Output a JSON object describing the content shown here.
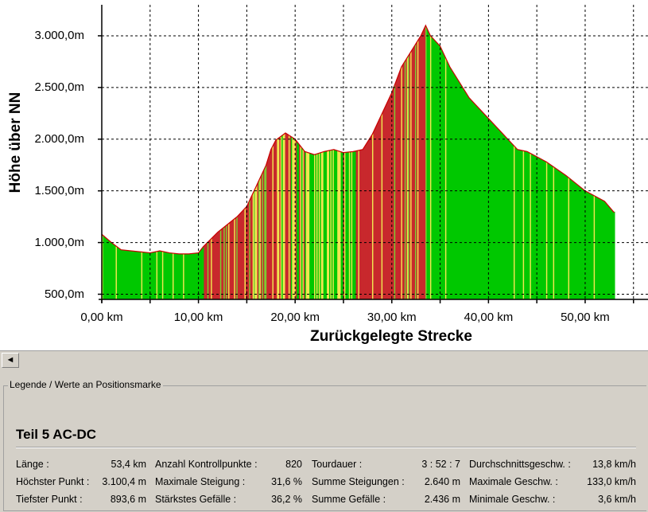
{
  "chart_data": {
    "type": "area",
    "ylabel": "Höhe über NN",
    "xlabel": "Zurückgelegte Strecke",
    "x_ticks": [
      "0,00 km",
      "10,00 km",
      "20,00 km",
      "30,00 km",
      "40,00 km",
      "50,00 km"
    ],
    "y_ticks": [
      "500,0m",
      "1.000,0m",
      "1.500,0m",
      "2.000,0m",
      "2.500,0m",
      "3.000,0m"
    ],
    "xlim": [
      0,
      56.5
    ],
    "ylim": [
      450,
      3300
    ],
    "grid": true,
    "series": [
      {
        "x": [
          0,
          1,
          2,
          3,
          4,
          5,
          6,
          7,
          8,
          9,
          10,
          10.5,
          12,
          14,
          15,
          16,
          17,
          17.5,
          18,
          19,
          20,
          21,
          22,
          23,
          24,
          25,
          26,
          27,
          28,
          30,
          31,
          32,
          33,
          33.5,
          34,
          35,
          36,
          38,
          40,
          42,
          43,
          44,
          46,
          48,
          50,
          52,
          53
        ],
        "y": [
          1080,
          1000,
          930,
          920,
          910,
          900,
          920,
          900,
          890,
          890,
          900,
          960,
          1100,
          1250,
          1350,
          1550,
          1750,
          1900,
          1990,
          2060,
          2000,
          1880,
          1850,
          1880,
          1900,
          1870,
          1880,
          1900,
          2050,
          2450,
          2700,
          2850,
          3000,
          3100,
          3000,
          2900,
          2700,
          2400,
          2200,
          2000,
          1900,
          1880,
          1780,
          1650,
          1500,
          1400,
          1290
        ]
      }
    ],
    "color_segments": [
      {
        "from": 0,
        "to": 10.5,
        "grade": "flat"
      },
      {
        "from": 10.5,
        "to": 18,
        "grade": "climb"
      },
      {
        "from": 18,
        "to": 20.5,
        "grade": "mixed"
      },
      {
        "from": 20.5,
        "to": 26.5,
        "grade": "rolling"
      },
      {
        "from": 26.5,
        "to": 33.6,
        "grade": "climb"
      },
      {
        "from": 33.6,
        "to": 53,
        "grade": "descent"
      }
    ],
    "colors": {
      "climb": "#c8282d",
      "flat": "#00c800",
      "rolling": "#7ccc32",
      "descent": "#00c800",
      "neutral": "#f0e650",
      "line": "#c80000",
      "grid": "#000000"
    }
  },
  "legend": {
    "title": "Legende / Werte an Positionsmarke",
    "tour_name": "Teil 5 AC-DC",
    "rows": [
      {
        "c1_label": "Länge :",
        "c1_value": "53,4 km",
        "c2_label": "Anzahl Kontrollpunkte :",
        "c2_value": "820",
        "c3_label": "Tourdauer :",
        "c3_value": "3 : 52 : 7",
        "c4_label": "Durchschnittsgeschw. :",
        "c4_value": "13,8 km/h"
      },
      {
        "c1_label": "Höchster Punkt :",
        "c1_value": "3.100,4 m",
        "c2_label": "Maximale Steigung :",
        "c2_value": "31,6 %",
        "c3_label": "Summe Steigungen :",
        "c3_value": "2.640 m",
        "c4_label": "Maximale Geschw. :",
        "c4_value": "133,0 km/h"
      },
      {
        "c1_label": "Tiefster Punkt :",
        "c1_value": "893,6 m",
        "c2_label": "Stärkstes Gefälle :",
        "c2_value": "36,2 %",
        "c3_label": "Summe Gefälle :",
        "c3_value": "2.436 m",
        "c4_label": "Minimale Geschw. :",
        "c4_value": "3,6 km/h"
      }
    ]
  },
  "scrollbar": {
    "left_arrow": "◄"
  }
}
